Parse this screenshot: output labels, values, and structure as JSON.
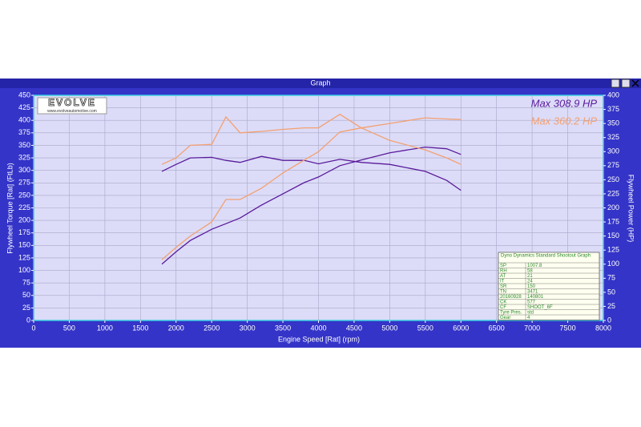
{
  "window": {
    "title": "Graph"
  },
  "logo": {
    "brand": "EVOLVE",
    "url": "www.evolveautomotive.com"
  },
  "info_table": {
    "header": "Dyno Dynamics Standard Shootout Graph",
    "rows": [
      [
        "SP",
        "1007.8"
      ],
      [
        "RH",
        "58"
      ],
      [
        "AT",
        "21"
      ],
      [
        "IT",
        "24"
      ],
      [
        "SR",
        "150"
      ],
      [
        "TN",
        "3471"
      ],
      [
        "20160928",
        "140801"
      ],
      [
        "CK",
        "577"
      ],
      [
        "CF",
        "SHOOT_6F"
      ],
      [
        "Tyre Pres.",
        "std"
      ],
      [
        "Gear",
        "4"
      ]
    ]
  },
  "chart_data": {
    "type": "line",
    "x_label": "Engine Speed [Rat] (rpm)",
    "y_label": "Flywheel Torque [Rat] (FtLb)",
    "y2_label": "Flywheel Power (HP)",
    "annotations": [
      {
        "text": "Max 308.9 HP",
        "color": "#5a1a9a"
      },
      {
        "text": "Max 360.2 HP",
        "color": "#f4a070"
      }
    ],
    "x": [
      1800,
      2000,
      2200,
      2500,
      2700,
      2900,
      3200,
      3500,
      3800,
      4000,
      4300,
      4600,
      5000,
      5500,
      5800,
      6000
    ],
    "series": [
      {
        "color": "#5a1a9a",
        "axis": "y",
        "values": [
          298,
          312,
          325,
          326,
          320,
          316,
          328,
          320,
          320,
          313,
          322,
          316,
          312,
          298,
          280,
          260
        ]
      },
      {
        "color": "#5a1a9a",
        "axis": "y2",
        "values": [
          100,
          122,
          142,
          162,
          172,
          182,
          205,
          225,
          245,
          255,
          275,
          285,
          298,
          308,
          305,
          295
        ]
      },
      {
        "color": "#f4a070",
        "axis": "y",
        "values": [
          312,
          325,
          350,
          352,
          407,
          375,
          378,
          382,
          385,
          385,
          412,
          385,
          360,
          341,
          325,
          312
        ]
      },
      {
        "color": "#f4a070",
        "axis": "y2",
        "values": [
          108,
          130,
          150,
          175,
          215,
          215,
          235,
          262,
          285,
          300,
          335,
          342,
          350,
          360,
          358,
          357
        ]
      }
    ],
    "xlim": [
      0,
      8000
    ],
    "xticks": [
      0,
      500,
      1000,
      1500,
      2000,
      2500,
      3000,
      3500,
      4000,
      4500,
      5000,
      5500,
      6000,
      6500,
      7000,
      7500,
      8000
    ],
    "ylim": [
      0,
      450
    ],
    "yticks": [
      0,
      25,
      50,
      75,
      100,
      125,
      150,
      175,
      200,
      225,
      250,
      275,
      300,
      325,
      350,
      375,
      400,
      425,
      450
    ],
    "y2lim": [
      0,
      400
    ],
    "y2ticks": [
      0,
      25,
      50,
      75,
      100,
      125,
      150,
      175,
      200,
      225,
      250,
      275,
      300,
      325,
      350,
      375,
      400
    ],
    "grid": true
  }
}
